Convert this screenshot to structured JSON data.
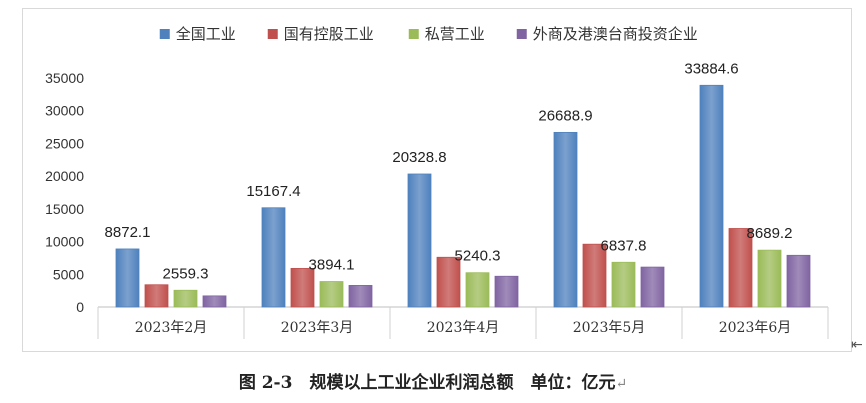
{
  "chart_data": {
    "type": "bar",
    "categories": [
      "2023年2月",
      "2023年3月",
      "2023年4月",
      "2023年5月",
      "2023年6月"
    ],
    "series": [
      {
        "name": "全国工业",
        "color": "#4f81bd",
        "values": [
          8872.1,
          15167.4,
          20328.8,
          26688.9,
          33884.6
        ],
        "labels": [
          "8872.1",
          "15167.4",
          "20328.8",
          "26688.9",
          "33884.6"
        ]
      },
      {
        "name": "国有控股工业",
        "color": "#c0504d",
        "values": [
          3400,
          5900,
          7600,
          9600,
          12000
        ],
        "labels": [
          "",
          "",
          "",
          "",
          ""
        ]
      },
      {
        "name": "私营工业",
        "color": "#9bbb59",
        "values": [
          2559.3,
          3894.1,
          5240.3,
          6837.8,
          8689.2
        ],
        "labels": [
          "2559.3",
          "3894.1",
          "5240.3",
          "6837.8",
          "8689.2"
        ]
      },
      {
        "name": "外商及港澳台商投资企业",
        "color": "#8064a2",
        "values": [
          1700,
          3300,
          4700,
          6100,
          7900
        ],
        "labels": [
          "",
          "",
          "",
          "",
          ""
        ]
      }
    ],
    "ylim": [
      0,
      35000
    ],
    "yticks": [
      0,
      5000,
      10000,
      15000,
      20000,
      25000,
      30000,
      35000
    ],
    "legend_position": "top",
    "grid": false
  },
  "caption": {
    "text": "图 2-3　规模以上工业企业利润总额　单位：亿元",
    "return_mark": "↵"
  },
  "cursor_mark": "⇤"
}
